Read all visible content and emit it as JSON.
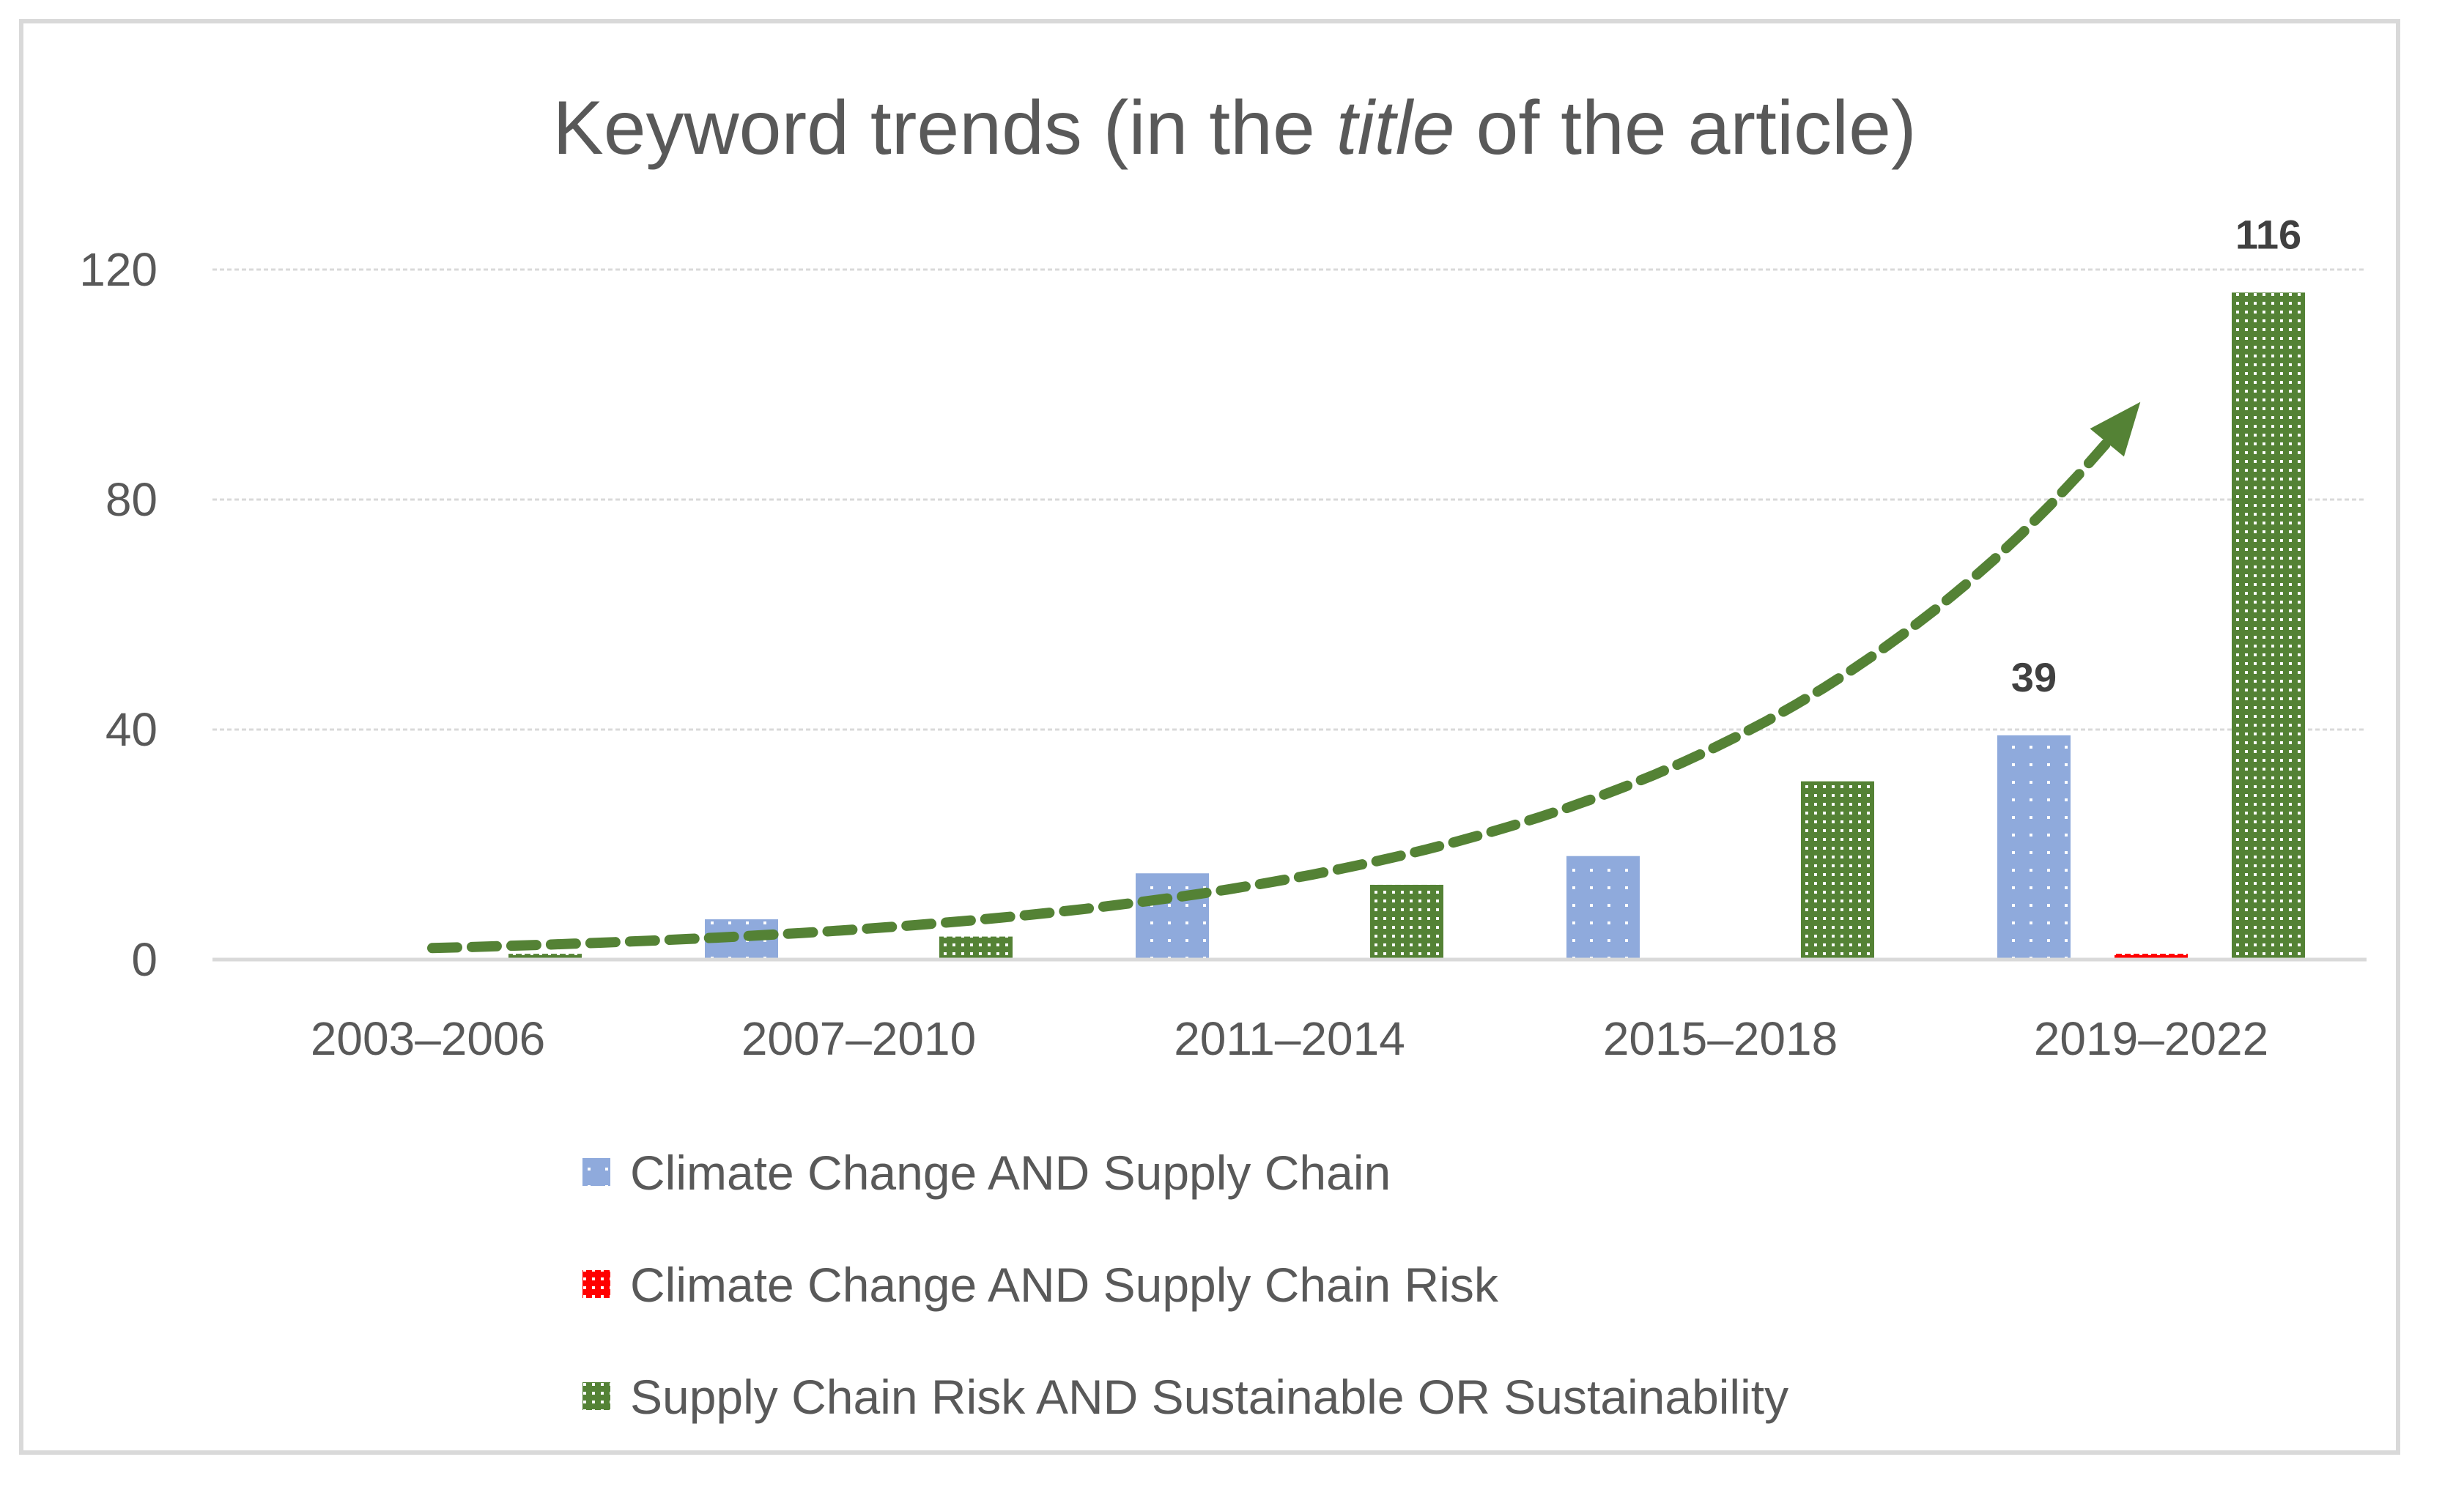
{
  "chart_data": {
    "type": "bar",
    "title": {
      "prefix": "Keyword trends (in the ",
      "emphasis": "title",
      "suffix": " of the article)"
    },
    "categories": [
      "2003–2006",
      "2007–2010",
      "2011–2014",
      "2015–2018",
      "2019–2022"
    ],
    "series": [
      {
        "name": "Climate Change AND Supply Chain",
        "color": "#8faadc",
        "values": [
          0,
          7,
          15,
          18,
          39
        ]
      },
      {
        "name": "Climate Change AND Supply Chain Risk",
        "color": "#ff0000",
        "values": [
          0,
          0,
          0,
          0,
          1
        ]
      },
      {
        "name": "Supply Chain Risk AND Sustainable OR Sustainability",
        "color": "#548235",
        "values": [
          1,
          4,
          13,
          31,
          116
        ]
      }
    ],
    "ylim": [
      0,
      120
    ],
    "yticks": [
      0,
      40,
      80,
      120
    ],
    "grid": true,
    "legend": "bottom",
    "data_labels": [
      {
        "series": 0,
        "category": 4,
        "text": "39"
      },
      {
        "series": 2,
        "category": 4,
        "text": "116"
      }
    ],
    "annotation": {
      "type": "dashed-trend-arrow",
      "color": "#548235"
    },
    "xlabel": "",
    "ylabel": ""
  }
}
